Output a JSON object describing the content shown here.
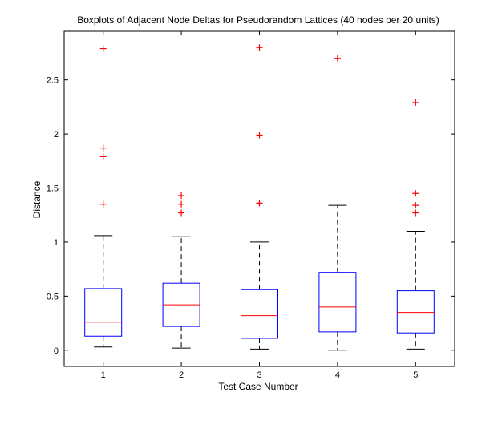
{
  "chart_data": {
    "type": "boxplot",
    "title": "Boxplots of Adjacent Node Deltas for Pseudorandom Lattices (40 nodes per 20 units)",
    "xlabel": "Test Case Number",
    "ylabel": "Distance",
    "categories": [
      "1",
      "2",
      "3",
      "4",
      "5"
    ],
    "ylim": [
      -0.15,
      2.95
    ],
    "yticks": [
      0,
      0.5,
      1,
      1.5,
      2,
      2.5
    ],
    "ytick_labels": [
      "0",
      "0.5",
      "1",
      "1.5",
      "2",
      "2.5"
    ],
    "grid": false,
    "colors": {
      "box": "#0000ff",
      "median": "#ff0000",
      "outlier": "#ff0000",
      "whisker": "#000000"
    },
    "boxes": [
      {
        "label": "1",
        "whisker_low": 0.03,
        "q1": 0.13,
        "median": 0.26,
        "q3": 0.57,
        "whisker_high": 1.06,
        "outliers": [
          1.35,
          1.79,
          1.87,
          2.79
        ]
      },
      {
        "label": "2",
        "whisker_low": 0.02,
        "q1": 0.22,
        "median": 0.42,
        "q3": 0.62,
        "whisker_high": 1.05,
        "outliers": [
          1.27,
          1.35,
          1.43
        ]
      },
      {
        "label": "3",
        "whisker_low": 0.01,
        "q1": 0.11,
        "median": 0.32,
        "q3": 0.56,
        "whisker_high": 1.0,
        "outliers": [
          1.36,
          1.99,
          2.8
        ]
      },
      {
        "label": "4",
        "whisker_low": 0.0,
        "q1": 0.17,
        "median": 0.4,
        "q3": 0.72,
        "whisker_high": 1.34,
        "outliers": [
          2.7
        ]
      },
      {
        "label": "5",
        "whisker_low": 0.01,
        "q1": 0.16,
        "median": 0.35,
        "q3": 0.55,
        "whisker_high": 1.1,
        "outliers": [
          1.27,
          1.34,
          1.45,
          2.29
        ]
      }
    ]
  }
}
